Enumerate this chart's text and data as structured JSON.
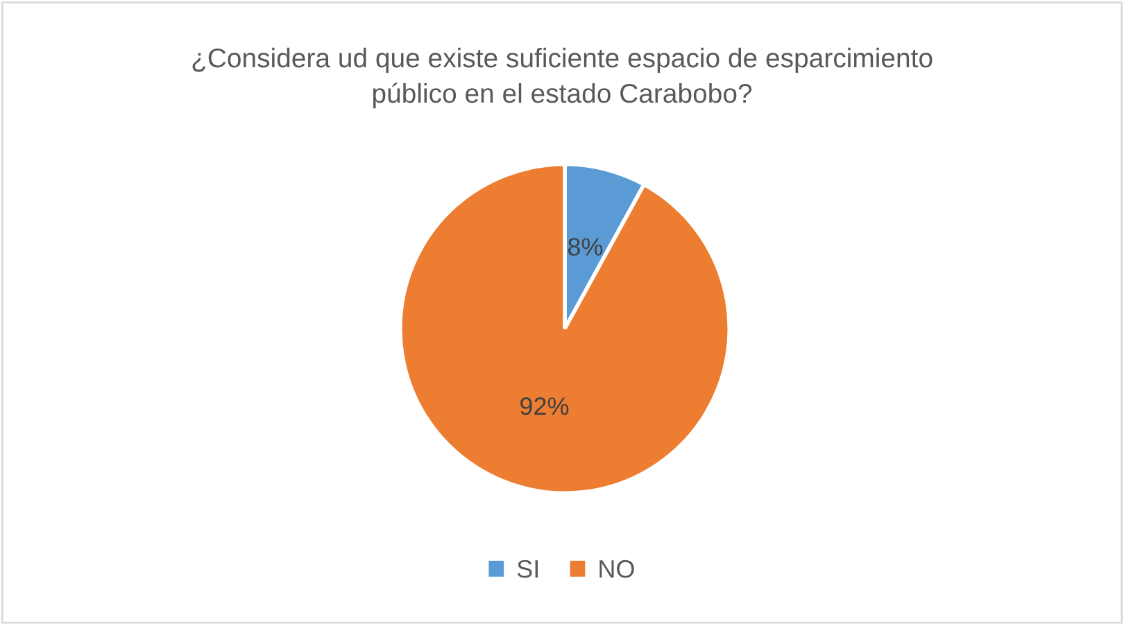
{
  "chart_data": {
    "type": "pie",
    "title": "¿Considera ud que existe suficiente espacio de esparcimiento\npúblico en el estado Carabobo?",
    "categories": [
      "SI",
      "NO"
    ],
    "values": [
      8,
      92
    ],
    "colors": [
      "#5b9bd5",
      "#ed7d31"
    ],
    "value_labels": [
      "8%",
      "92%"
    ],
    "legend": "bottom"
  }
}
